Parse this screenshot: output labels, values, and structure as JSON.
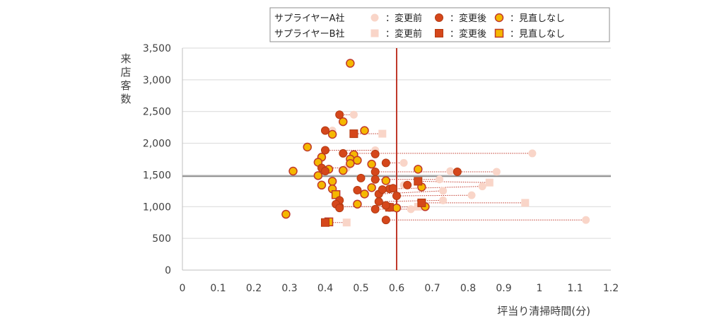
{
  "colors": {
    "before": "#f9d5c8",
    "after": "#d5471b",
    "after_stroke": "#b33a12",
    "same_fill": "#f5b800",
    "same_stroke": "#c0392b",
    "link": "#c0392b",
    "threshold_x": "#c0392b",
    "threshold_y": "#8c8c8c",
    "grid": "#d9d9d9",
    "axis": "#bfbfbf"
  },
  "legend": {
    "rows": [
      {
        "label": "サプライヤーA社",
        "shape": "circle",
        "items": [
          {
            "kind": "before",
            "text": "：変更前"
          },
          {
            "kind": "after",
            "text": "：変更後"
          },
          {
            "kind": "same",
            "text": "：見直しなし"
          }
        ]
      },
      {
        "label": "サプライヤーB社",
        "shape": "square",
        "items": [
          {
            "kind": "before",
            "text": "：変更前"
          },
          {
            "kind": "after",
            "text": "：変更後"
          },
          {
            "kind": "same",
            "text": "：見直しなし"
          }
        ]
      }
    ]
  },
  "chart_data": {
    "type": "scatter",
    "xlabel": "坪当り清掃時間(分)",
    "ylabel": "来店客数",
    "xlim": [
      0,
      1.2
    ],
    "ylim": [
      0,
      3500
    ],
    "x_ticks": [
      "0",
      "0.1",
      "0.2",
      "0.3",
      "0.4",
      "0.5",
      "0.6",
      "0.7",
      "0.8",
      "0.9",
      "1",
      "1.1",
      "1.2"
    ],
    "y_ticks": [
      "0",
      "500",
      "1,000",
      "1,500",
      "2,000",
      "2,500",
      "3,000",
      "3,500"
    ],
    "x_tick_values": [
      0,
      0.1,
      0.2,
      0.3,
      0.4,
      0.5,
      0.6,
      0.7,
      0.8,
      0.9,
      1.0,
      1.1,
      1.2
    ],
    "y_tick_values": [
      0,
      500,
      1000,
      1500,
      2000,
      2500,
      3000,
      3500
    ],
    "reference_lines": {
      "x": 0.6,
      "y": 1480
    },
    "grid": "horizontal",
    "legend_position": "top-right",
    "changed": [
      {
        "supplier": "A",
        "before": [
          0.48,
          2450
        ],
        "after": [
          0.44,
          2450
        ]
      },
      {
        "supplier": "A",
        "before": [
          0.42,
          2200
        ],
        "after": [
          0.4,
          2200
        ]
      },
      {
        "supplier": "A",
        "before": [
          0.98,
          1840
        ],
        "after": [
          0.45,
          1840
        ]
      },
      {
        "supplier": "A",
        "before": [
          0.54,
          1890
        ],
        "after": [
          0.4,
          1890
        ]
      },
      {
        "supplier": "A",
        "before": [
          0.88,
          1550
        ],
        "after": [
          0.54,
          1550
        ]
      },
      {
        "supplier": "A",
        "before": [
          0.75,
          1560
        ],
        "after": [
          0.77,
          1550
        ]
      },
      {
        "supplier": "A",
        "before": [
          0.62,
          1690
        ],
        "after": [
          0.57,
          1690
        ]
      },
      {
        "supplier": "A",
        "before": [
          0.72,
          1430
        ],
        "after": [
          0.54,
          1430
        ]
      },
      {
        "supplier": "A",
        "before": [
          0.84,
          1320
        ],
        "after": [
          0.58,
          1280
        ]
      },
      {
        "supplier": "A",
        "before": [
          0.73,
          1250
        ],
        "after": [
          0.55,
          1200
        ]
      },
      {
        "supplier": "A",
        "before": [
          0.81,
          1180
        ],
        "after": [
          0.6,
          1170
        ]
      },
      {
        "supplier": "A",
        "before": [
          0.73,
          1100
        ],
        "after": [
          0.55,
          1080
        ]
      },
      {
        "supplier": "A",
        "before": [
          0.64,
          960
        ],
        "after": [
          0.54,
          960
        ]
      },
      {
        "supplier": "A",
        "before": [
          1.13,
          790
        ],
        "after": [
          0.57,
          790
        ]
      },
      {
        "supplier": "A",
        "before": [
          0.62,
          1340
        ],
        "after": [
          0.63,
          1340
        ]
      },
      {
        "supplier": "A",
        "before": [
          0.46,
          1610
        ],
        "after": [
          0.39,
          1610
        ]
      },
      {
        "supplier": "A",
        "before": [
          0.57,
          1000
        ],
        "after": [
          0.44,
          1000
        ]
      },
      {
        "supplier": "B",
        "before": [
          0.56,
          2150
        ],
        "after": [
          0.48,
          2150
        ]
      },
      {
        "supplier": "B",
        "before": [
          0.86,
          1380
        ],
        "after": [
          0.66,
          1400
        ]
      },
      {
        "supplier": "B",
        "before": [
          0.96,
          1060
        ],
        "after": [
          0.67,
          1060
        ]
      },
      {
        "supplier": "B",
        "before": [
          0.46,
          750
        ],
        "after": [
          0.4,
          750
        ]
      },
      {
        "supplier": "B",
        "before": [
          0.66,
          1000
        ],
        "after": [
          0.58,
          990
        ]
      }
    ],
    "unchanged": [
      {
        "supplier": "A",
        "point": [
          0.47,
          3260
        ]
      },
      {
        "supplier": "A",
        "point": [
          0.45,
          2340
        ]
      },
      {
        "supplier": "A",
        "point": [
          0.42,
          2140
        ]
      },
      {
        "supplier": "A",
        "point": [
          0.51,
          2200
        ]
      },
      {
        "supplier": "A",
        "point": [
          0.35,
          1940
        ]
      },
      {
        "supplier": "A",
        "point": [
          0.39,
          1780
        ]
      },
      {
        "supplier": "A",
        "point": [
          0.48,
          1820
        ]
      },
      {
        "supplier": "A",
        "point": [
          0.38,
          1700
        ]
      },
      {
        "supplier": "A",
        "point": [
          0.47,
          1750
        ]
      },
      {
        "supplier": "A",
        "point": [
          0.49,
          1730
        ]
      },
      {
        "supplier": "A",
        "point": [
          0.47,
          1680
        ]
      },
      {
        "supplier": "A",
        "point": [
          0.53,
          1670
        ]
      },
      {
        "supplier": "A",
        "point": [
          0.31,
          1560
        ]
      },
      {
        "supplier": "A",
        "point": [
          0.41,
          1590
        ]
      },
      {
        "supplier": "A",
        "point": [
          0.45,
          1570
        ]
      },
      {
        "supplier": "A",
        "point": [
          0.66,
          1590
        ]
      },
      {
        "supplier": "A",
        "point": [
          0.38,
          1490
        ]
      },
      {
        "supplier": "A",
        "point": [
          0.42,
          1400
        ]
      },
      {
        "supplier": "A",
        "point": [
          0.39,
          1340
        ]
      },
      {
        "supplier": "A",
        "point": [
          0.42,
          1280
        ]
      },
      {
        "supplier": "A",
        "point": [
          0.57,
          1410
        ]
      },
      {
        "supplier": "A",
        "point": [
          0.53,
          1300
        ]
      },
      {
        "supplier": "A",
        "point": [
          0.51,
          1200
        ]
      },
      {
        "supplier": "A",
        "point": [
          0.49,
          1040
        ]
      },
      {
        "supplier": "A",
        "point": [
          0.58,
          990
        ]
      },
      {
        "supplier": "A",
        "point": [
          0.6,
          980
        ]
      },
      {
        "supplier": "A",
        "point": [
          0.68,
          1000
        ]
      },
      {
        "supplier": "A",
        "point": [
          0.67,
          1310
        ]
      },
      {
        "supplier": "A",
        "point": [
          0.29,
          880
        ]
      },
      {
        "supplier": "B",
        "point": [
          0.43,
          1190
        ]
      },
      {
        "supplier": "B",
        "point": [
          0.41,
          760
        ]
      }
    ],
    "single_after": [
      {
        "supplier": "A",
        "point": [
          0.4,
          1560
        ]
      },
      {
        "supplier": "A",
        "point": [
          0.44,
          1100
        ]
      },
      {
        "supplier": "A",
        "point": [
          0.43,
          1040
        ]
      },
      {
        "supplier": "A",
        "point": [
          0.49,
          1260
        ]
      },
      {
        "supplier": "A",
        "point": [
          0.5,
          1450
        ]
      },
      {
        "supplier": "A",
        "point": [
          0.54,
          1830
        ]
      },
      {
        "supplier": "A",
        "point": [
          0.59,
          1290
        ]
      },
      {
        "supplier": "A",
        "point": [
          0.56,
          1270
        ]
      },
      {
        "supplier": "A",
        "point": [
          0.44,
          980
        ]
      },
      {
        "supplier": "A",
        "point": [
          0.57,
          1020
        ]
      }
    ]
  }
}
